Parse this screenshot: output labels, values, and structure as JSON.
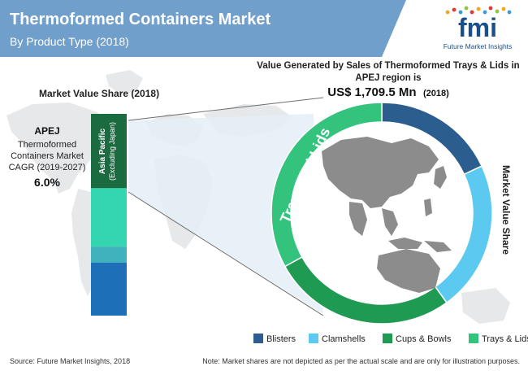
{
  "header": {
    "title": "Thermoformed Containers Market",
    "subtitle": "By Product Type (2018)",
    "logo_text": "fmi",
    "logo_caption": "Future Market Insights"
  },
  "left_panel": {
    "heading": "Market Value Share (2018)",
    "region": "APEJ",
    "market_line1": "Thermoformed",
    "market_line2": "Containers Market",
    "cagr_label": "CAGR (2019-2027)",
    "cagr_value": "6.0%",
    "bar_label_line1": "Asia Pacific",
    "bar_label_line2": "(Excluding Japan)"
  },
  "donut_header": {
    "line1": "Value Generated by Sales of Thermoformed Trays & Lids in",
    "line2": "APEJ region is",
    "value": "US$ 1,709.5 Mn",
    "year": "(2018)"
  },
  "donut_labels": {
    "highlight": "Trays and Lids",
    "side": "Market Value Share"
  },
  "footer": {
    "source": "Source: Future Market Insights, 2018",
    "note": "Note: Market shares are not depicted as per the actual scale and are only for illustration purposes."
  },
  "colors": {
    "header_bg": "#6f9fca",
    "blisters": "#2b5d8f",
    "clamshells": "#5ccaf0",
    "cups_bowls": "#1f9a53",
    "trays_lids": "#33c37c",
    "apej_bar": "#1a6b40",
    "map": "#e6e8ea",
    "map_highlight": "#8c8c8c"
  },
  "chart_data": [
    {
      "type": "bar",
      "stacked": true,
      "orientation": "vertical",
      "title": "Market Value Share (2018)",
      "series": [
        {
          "name": "Asia Pacific (Excluding Japan)",
          "color": "#1a6b40",
          "value": 28
        },
        {
          "name": "Trays & Lids",
          "color": "#33d6b0",
          "value": 22
        },
        {
          "name": "Clamshells",
          "color": "#3fb3bd",
          "value": 6
        },
        {
          "name": "Blisters",
          "color": "#1d6fb7",
          "value": 20
        }
      ]
    },
    {
      "type": "pie",
      "donut": true,
      "title": "Market Value Share",
      "slices": [
        {
          "label": "Blisters",
          "value": 18,
          "color": "#2b5d8f"
        },
        {
          "label": "Clamshells",
          "value": 22,
          "color": "#5ccaf0"
        },
        {
          "label": "Cups & Bowls",
          "value": 27,
          "color": "#1f9a53"
        },
        {
          "label": "Trays & Lids",
          "value": 33,
          "color": "#33c37c"
        }
      ],
      "legend": [
        "Blisters",
        "Clamshells",
        "Cups & Bowls",
        "Trays & Lids"
      ],
      "legend_position": "bottom"
    }
  ]
}
